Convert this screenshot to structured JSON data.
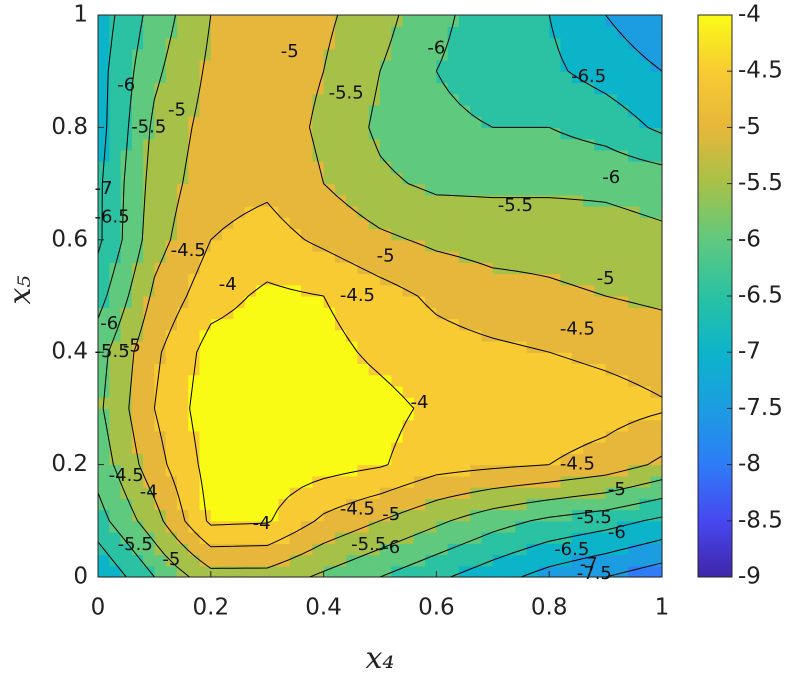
{
  "chart_data": {
    "type": "contourf",
    "xlabel": "x₄",
    "ylabel": "x₅",
    "x": [
      0,
      0.1,
      0.2,
      0.3,
      0.4,
      0.5,
      0.6,
      0.7,
      0.8,
      0.9,
      1
    ],
    "y": [
      0,
      0.1,
      0.2,
      0.3,
      0.4,
      0.5,
      0.6,
      0.7,
      0.8,
      0.9,
      1
    ],
    "z": [
      [
        -7,
        -6,
        -5.2,
        -5.2,
        -5.6,
        -6.0,
        -6.4,
        -6.8,
        -7.2,
        -7.5,
        -7.8
      ],
      [
        -6.2,
        -5.2,
        -3.9,
        -3.95,
        -4.6,
        -5.0,
        -5.4,
        -5.8,
        -6.1,
        -6.3,
        -6.6
      ],
      [
        -5.8,
        -4.7,
        -3.8,
        -3.7,
        -3.8,
        -3.95,
        -4.3,
        -4.4,
        -4.5,
        -4.7,
        -5.1
      ],
      [
        -5.6,
        -4.5,
        -3.7,
        -3.6,
        -3.7,
        -3.85,
        -4.1,
        -4.2,
        -4.2,
        -4.3,
        -4.45
      ],
      [
        -5.7,
        -4.6,
        -3.8,
        -3.7,
        -3.85,
        -4.1,
        -4.3,
        -4.4,
        -4.5,
        -4.6,
        -4.7
      ],
      [
        -6.2,
        -4.9,
        -4.2,
        -3.9,
        -4.0,
        -4.3,
        -4.6,
        -4.8,
        -4.9,
        -5.0,
        -5.1
      ],
      [
        -6.6,
        -5.2,
        -4.5,
        -4.3,
        -4.6,
        -4.9,
        -5.1,
        -5.2,
        -5.2,
        -5.3,
        -5.4
      ],
      [
        -6.6,
        -5.3,
        -4.7,
        -4.6,
        -5.0,
        -5.4,
        -5.6,
        -5.6,
        -5.6,
        -5.6,
        -5.7
      ],
      [
        -6.7,
        -5.4,
        -4.8,
        -4.7,
        -5.1,
        -5.6,
        -5.9,
        -6.0,
        -6.0,
        -6.2,
        -6.6
      ],
      [
        -6.7,
        -5.6,
        -4.9,
        -4.7,
        -5.0,
        -5.5,
        -6.0,
        -6.2,
        -6.4,
        -6.7,
        -7.0
      ],
      [
        -6.8,
        -5.8,
        -5.0,
        -4.7,
        -4.9,
        -5.3,
        -5.9,
        -6.2,
        -6.5,
        -7.0,
        -7.4
      ]
    ],
    "levels": [
      -9,
      -8.5,
      -8,
      -7.5,
      -7,
      -6.5,
      -6,
      -5.5,
      -5,
      -4.5,
      -4
    ],
    "colors": [
      "#3e26a8",
      "#4748f1",
      "#2e7cf7",
      "#1c9de1",
      "#0cb4ca",
      "#2ac2a2",
      "#5fc97e",
      "#a6c148",
      "#e6b73a",
      "#f8cb33",
      "#f9fb15"
    ],
    "contour_labels": {
      "x": [
        0.34,
        0.6,
        0.87,
        0.44,
        0.05,
        0.14,
        0.09,
        0.01,
        0.025,
        0.91,
        0.74,
        0.16,
        0.51,
        0.9,
        0.23,
        0.46,
        0.85,
        0.02,
        0.025,
        0.06,
        0.57,
        0.05,
        0.85,
        0.09,
        0.92,
        0.46,
        0.52,
        0.29,
        0.88,
        0.92,
        0.48,
        0.52,
        0.84,
        0.87,
        0.88,
        0.066,
        0.13
      ],
      "y": [
        0.934,
        0.94,
        0.89,
        0.86,
        0.875,
        0.83,
        0.8,
        0.69,
        0.64,
        0.71,
        0.66,
        0.58,
        0.57,
        0.53,
        0.52,
        0.5,
        0.44,
        0.45,
        0.4,
        0.41,
        0.31,
        0.18,
        0.2,
        0.15,
        0.155,
        0.12,
        0.11,
        0.094,
        0.105,
        0.078,
        0.057,
        0.052,
        0.048,
        0.021,
        0.005,
        0.057,
        0.03
      ],
      "values": [
        -5,
        -6,
        -6.5,
        -5.5,
        -6,
        -5,
        -5.5,
        -7,
        -6.5,
        -6,
        -5.5,
        -4.5,
        -5,
        -5,
        -4,
        -4.5,
        -4.5,
        -6,
        -5.5,
        -5,
        -4,
        -4.5,
        -4.5,
        -4,
        -5,
        -4.5,
        -5,
        -4,
        -5.5,
        -6,
        -5.5,
        -6,
        -6.5,
        -7,
        -7.5,
        -5.5,
        -5
      ]
    },
    "xlim": [
      0,
      1
    ],
    "ylim": [
      0,
      1
    ],
    "xticks": [
      0,
      0.2,
      0.4,
      0.6,
      0.8,
      1
    ],
    "yticks": [
      0,
      0.2,
      0.4,
      0.6,
      0.8,
      1
    ],
    "clim": [
      -9,
      -4
    ],
    "cticks": [
      -9,
      -8.5,
      -8,
      -7.5,
      -7,
      -6.5,
      -6,
      -5.5,
      -5,
      -4.5,
      -4
    ]
  }
}
